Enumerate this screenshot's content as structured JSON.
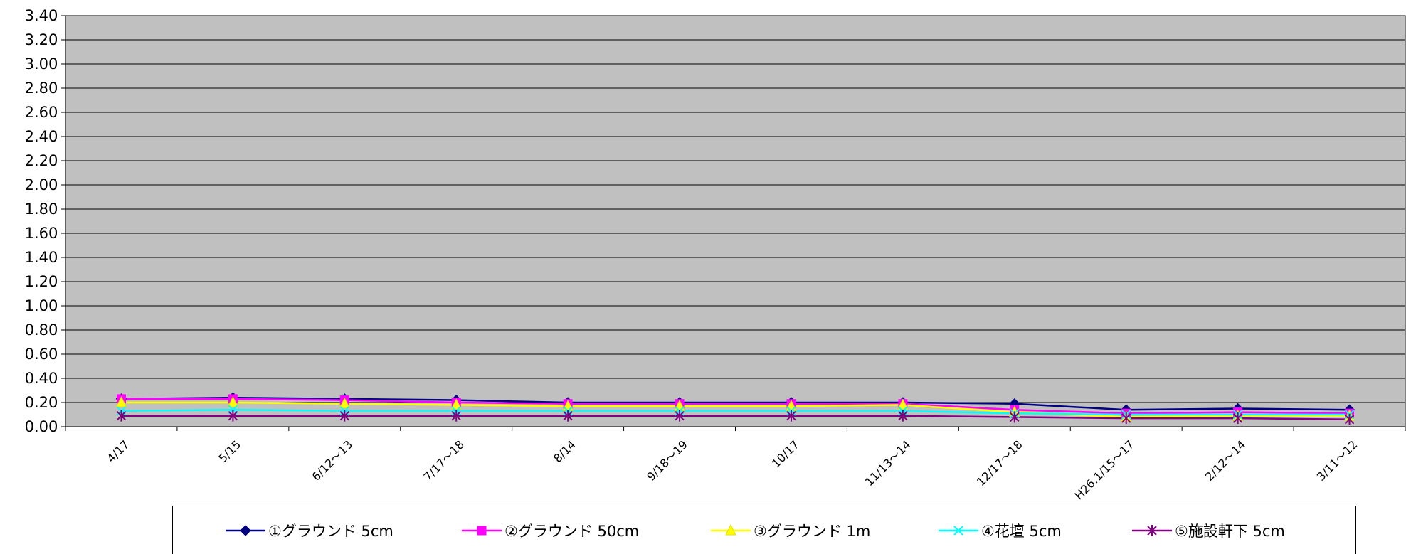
{
  "chart_data": {
    "type": "line",
    "categories": [
      "4/17",
      "5/15",
      "6/12～13",
      "7/17～18",
      "8/14",
      "9/18～19",
      "10/17",
      "11/13～14",
      "12/17～18",
      "H26.1/15～17",
      "2/12～14",
      "3/11～12"
    ],
    "y_ticks": [
      "0.00",
      "0.20",
      "0.40",
      "0.60",
      "0.80",
      "1.00",
      "1.20",
      "1.40",
      "1.60",
      "1.80",
      "2.00",
      "2.20",
      "2.40",
      "2.60",
      "2.80",
      "3.00",
      "3.20",
      "3.40"
    ],
    "ylim": [
      0,
      3.4
    ],
    "grid": true,
    "plot_background": "#c0c0c0",
    "legend_position": "bottom",
    "series": [
      {
        "name": "①グラウンド 5cm",
        "color": "#000080",
        "marker": "diamond",
        "values": [
          0.23,
          0.24,
          0.23,
          0.22,
          0.2,
          0.2,
          0.2,
          0.2,
          0.19,
          0.14,
          0.15,
          0.14
        ]
      },
      {
        "name": "②グラウンド 50cm",
        "color": "#ff00ff",
        "marker": "square",
        "values": [
          0.23,
          0.23,
          0.22,
          0.2,
          0.19,
          0.19,
          0.19,
          0.19,
          0.14,
          0.11,
          0.12,
          0.11
        ]
      },
      {
        "name": "③グラウンド 1m",
        "color": "#ffff00",
        "marker": "triangle",
        "values": [
          0.2,
          0.2,
          0.19,
          0.18,
          0.17,
          0.17,
          0.17,
          0.18,
          0.12,
          0.08,
          0.09,
          0.09
        ]
      },
      {
        "name": "④花壇 5cm",
        "color": "#00ffff",
        "marker": "x",
        "values": [
          0.13,
          0.14,
          0.13,
          0.13,
          0.13,
          0.13,
          0.13,
          0.13,
          0.11,
          0.1,
          0.1,
          0.1
        ]
      },
      {
        "name": "⑤施設軒下 5cm",
        "color": "#800080",
        "marker": "star",
        "values": [
          0.09,
          0.09,
          0.09,
          0.09,
          0.09,
          0.09,
          0.09,
          0.09,
          0.08,
          0.07,
          0.07,
          0.06
        ]
      }
    ]
  }
}
